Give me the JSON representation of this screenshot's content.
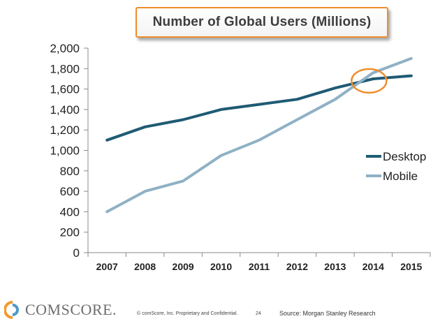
{
  "chart_data": {
    "type": "line",
    "title": "Number of Global Users (Millions)",
    "categories": [
      "2007",
      "2008",
      "2009",
      "2010",
      "2011",
      "2012",
      "2013",
      "2014",
      "2015"
    ],
    "series": [
      {
        "name": "Desktop",
        "color": "#1f5b74",
        "values": [
          1100,
          1230,
          1300,
          1400,
          1450,
          1500,
          1610,
          1700,
          1730
        ]
      },
      {
        "name": "Mobile",
        "color": "#8fb1c5",
        "values": [
          400,
          600,
          700,
          950,
          1100,
          1300,
          1500,
          1760,
          1900
        ]
      }
    ],
    "ylim": [
      0,
      2000
    ],
    "yticks": [
      "0",
      "200",
      "400",
      "600",
      "800",
      "1,000",
      "1,200",
      "1,400",
      "1,600",
      "1,800",
      "2,000"
    ],
    "ytick_values": [
      0,
      200,
      400,
      600,
      800,
      1000,
      1200,
      1400,
      1600,
      1800,
      2000
    ],
    "legend_position": "right",
    "grid": false,
    "annotation": {
      "shape": "ellipse",
      "color": "#ef8d2b",
      "x": "2014",
      "y": 1680
    }
  },
  "footer": {
    "logo_text": "COMSCORE.",
    "copyright": "© comScore, Inc.  Proprietary and Confidential.",
    "page": "24",
    "source": "Source: Morgan Stanley Research"
  }
}
